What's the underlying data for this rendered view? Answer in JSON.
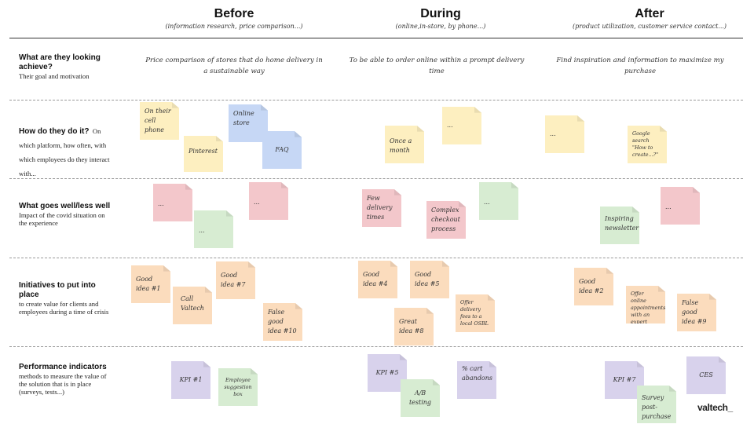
{
  "columns": [
    {
      "title": "Before",
      "subtitle": "(information research, price comparison...)"
    },
    {
      "title": "During",
      "subtitle": "(online,in-store, by phone...)"
    },
    {
      "title": "After",
      "subtitle": "(product utilization, customer service contact...)"
    }
  ],
  "rows": [
    {
      "title": "What are they looking achieve?",
      "description": "Their goal and motivation"
    },
    {
      "title": "How do they do it?",
      "description": "On which platform, how often, with which employees do they interact with..."
    },
    {
      "title": "What goes well/less well",
      "description": "Impact of the covid situation on the experience"
    },
    {
      "title": "Initiatives to put into place",
      "description": "to create value for clients and employees during a time of crisis"
    },
    {
      "title": "Performance indicators",
      "description": "methods to measure the value of the solution that is in place (surveys, tests...)"
    }
  ],
  "goals": {
    "before": "Price comparison of stores that do home delivery in a sustainable way",
    "during": "To be able to order online within a prompt delivery time",
    "after": "Find inspiration and information to maximize my purchase"
  },
  "notes": {
    "how_before_cell": "On their cell phone",
    "how_before_pinterest": "Pinterest",
    "how_before_online_store": "Online store",
    "how_before_faq": "FAQ",
    "how_during_once": "Once a month",
    "how_during_dots": "...",
    "how_after_dots": "...",
    "how_after_google": "Google search \"How to create...?\"",
    "well_before_1": "...",
    "well_before_2": "...",
    "well_before_3": "...",
    "well_during_few": "Few delivery times",
    "well_during_complex": "Complex checkout process",
    "well_during_dots": "...",
    "well_after_newsletter": "Inspiring newsletter",
    "well_after_dots": "...",
    "init_good_1": "Good idea #1",
    "init_call": "Call Valtech",
    "init_good_7": "Good idea #7",
    "init_false_10": "False good idea #10",
    "init_good_4": "Good idea #4",
    "init_good_5": "Good idea #5",
    "init_offer_delivery": "Offer delivery fees to a local OSBL",
    "init_great_8": "Great idea #8",
    "init_good_2": "Good idea #2",
    "init_offer_online": "Offer online appointments with an expert",
    "init_false_9": "False good idea #9",
    "kpi_1": "KPI #1",
    "kpi_employee": "Employee suggestion box",
    "kpi_5": "KPI #5",
    "kpi_ab": "A/B testing",
    "kpi_cart": "% cart abandons",
    "kpi_7": "KPI #7",
    "kpi_ces": "CES",
    "kpi_survey": "Survey post-purchase"
  },
  "brand": {
    "logo": "valtech_"
  },
  "colors": {
    "yellow": "#fdefc0",
    "blue": "#c6d7f5",
    "red": "#f3c7cb",
    "green": "#d7ecd2",
    "orange": "#fbdcbd",
    "purple": "#d8d2ec"
  }
}
